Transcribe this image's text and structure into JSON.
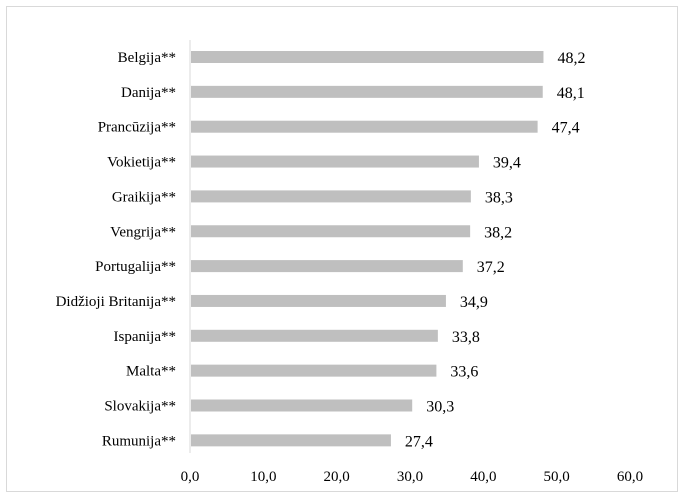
{
  "chart_data": {
    "type": "bar",
    "orientation": "horizontal",
    "categories": [
      "Belgija**",
      "Danija**",
      "Prancūzija**",
      "Vokietija**",
      "Graikija**",
      "Vengrija**",
      "Portugalija**",
      "Didžioji Britanija**",
      "Ispanija**",
      "Malta**",
      "Slovakija**",
      "Rumunija**"
    ],
    "values": [
      48.2,
      48.1,
      47.4,
      39.4,
      38.3,
      38.2,
      37.2,
      34.9,
      33.8,
      33.6,
      30.3,
      27.4
    ],
    "value_labels": [
      "48,2",
      "48,1",
      "47,4",
      "39,4",
      "38,3",
      "38,2",
      "37,2",
      "34,9",
      "33,8",
      "33,6",
      "30,3",
      "27,4"
    ],
    "xlim": [
      0,
      60
    ],
    "x_ticks": [
      0,
      10,
      20,
      30,
      40,
      50,
      60
    ],
    "x_tick_labels": [
      "0,0",
      "10,0",
      "20,0",
      "30,0",
      "40,0",
      "50,0",
      "60,0"
    ],
    "title": "",
    "xlabel": "",
    "ylabel": "",
    "grid": false,
    "legend": "none",
    "bar_color": "#bfbfbf",
    "axis_color": "#d9d9d9"
  }
}
